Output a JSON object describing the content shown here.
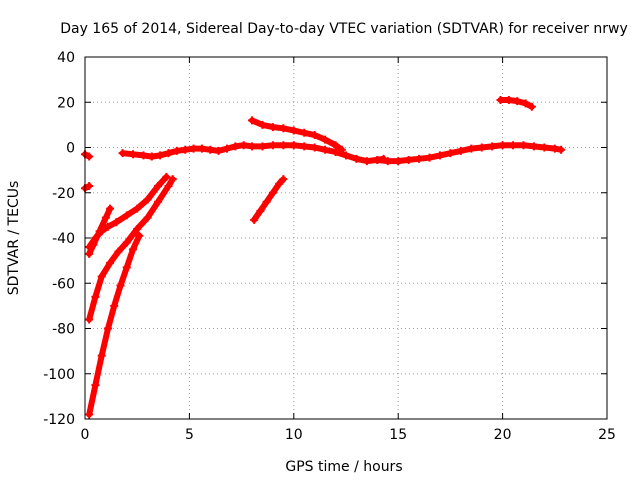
{
  "chart_data": {
    "type": "scatter",
    "title": "Day 165 of 2014, Sidereal Day-to-day VTEC variation (SDTVAR) for receiver nrwy",
    "xlabel": "GPS time / hours",
    "ylabel": "SDTVAR / TECUs",
    "xlim": [
      0,
      25
    ],
    "ylim": [
      -120,
      40
    ],
    "xticks": [
      0,
      5,
      10,
      15,
      20,
      25
    ],
    "xtick_labels": [
      "0",
      "5",
      "10",
      "15",
      "20",
      "25"
    ],
    "yticks": [
      -120,
      -100,
      -80,
      -60,
      -40,
      -20,
      0,
      20,
      40
    ],
    "ytick_labels": [
      "-120",
      "-100",
      "-80",
      "-60",
      "-40",
      "-20",
      "0",
      "20",
      "40"
    ],
    "grid": true,
    "series_color": "#ff0000",
    "grid_color": "#a0a0a0",
    "series": [
      {
        "name": "arc-main-1",
        "x": [
          1.8,
          2.3,
          2.8,
          3.2,
          3.6,
          4.0,
          4.4,
          4.8,
          5.2,
          5.6,
          6.0,
          6.4,
          6.8,
          7.2,
          7.6,
          8.0,
          8.5,
          9.0,
          9.5,
          10.0,
          10.5,
          11.0,
          11.5,
          12.0,
          12.5,
          13.0,
          13.5,
          14.0,
          14.3
        ],
        "y": [
          -2.5,
          -3,
          -3.5,
          -4,
          -3.5,
          -2.5,
          -1.5,
          -1,
          -0.5,
          -0.5,
          -1,
          -1.5,
          -0.5,
          0.5,
          1,
          0.5,
          0.5,
          1,
          1,
          1,
          0.5,
          0,
          -1,
          -2,
          -3.5,
          -5,
          -6,
          -5.5,
          -5
        ]
      },
      {
        "name": "arc-main-2",
        "x": [
          14.0,
          14.5,
          15.0,
          15.5,
          16.0,
          16.5,
          17.0,
          17.5,
          18.0,
          18.5,
          19.0,
          19.5,
          20.0,
          20.5,
          21.0,
          21.5,
          22.0,
          22.5,
          22.8
        ],
        "y": [
          -5.5,
          -6,
          -6,
          -5.5,
          -5,
          -4.5,
          -3.5,
          -2.5,
          -1.5,
          -0.5,
          0,
          0.5,
          1,
          1,
          1,
          0.5,
          0,
          -0.5,
          -1
        ]
      },
      {
        "name": "arc-high-1",
        "x": [
          8.0,
          8.5,
          9.0,
          9.5,
          10.0,
          10.5,
          11.0,
          11.5,
          12.0,
          12.3
        ],
        "y": [
          12,
          10,
          9,
          8.5,
          7.5,
          6.5,
          5.5,
          3.5,
          1,
          -1
        ]
      },
      {
        "name": "arc-high-2",
        "x": [
          19.9,
          20.3,
          20.7,
          21.1,
          21.4
        ],
        "y": [
          21,
          21,
          20.5,
          19.5,
          18
        ]
      },
      {
        "name": "arc-fragment-1",
        "x": [
          0.0,
          0.2
        ],
        "y": [
          -3,
          -4
        ]
      },
      {
        "name": "arc-fragment-2",
        "x": [
          0.0,
          0.2
        ],
        "y": [
          -18,
          -17
        ]
      },
      {
        "name": "rise-1",
        "x": [
          0.2,
          0.5,
          0.8,
          1.1,
          1.5,
          2.0,
          2.5,
          3.0,
          3.5,
          3.9
        ],
        "y": [
          -44,
          -40,
          -37,
          -35,
          -33,
          -30,
          -27,
          -23,
          -17,
          -13
        ]
      },
      {
        "name": "rise-2",
        "x": [
          0.2,
          0.4,
          0.7,
          1.0,
          1.2
        ],
        "y": [
          -47,
          -43,
          -37,
          -31,
          -27
        ]
      },
      {
        "name": "rise-3",
        "x": [
          0.2,
          0.5,
          0.8,
          1.2,
          1.6,
          2.0,
          2.5,
          3.0,
          3.5,
          4.0,
          4.2
        ],
        "y": [
          -76,
          -66,
          -57,
          -51,
          -46,
          -42,
          -36,
          -31,
          -24,
          -17,
          -14
        ]
      },
      {
        "name": "rise-4",
        "x": [
          0.2,
          0.5,
          0.8,
          1.1,
          1.4,
          1.7,
          2.0,
          2.3,
          2.6
        ],
        "y": [
          -118,
          -105,
          -92,
          -80,
          -70,
          -61,
          -53,
          -45,
          -39
        ]
      },
      {
        "name": "rise-5",
        "x": [
          8.1,
          8.4,
          8.7,
          9.0,
          9.3,
          9.5
        ],
        "y": [
          -32,
          -28,
          -24,
          -20,
          -16,
          -14
        ]
      }
    ]
  }
}
